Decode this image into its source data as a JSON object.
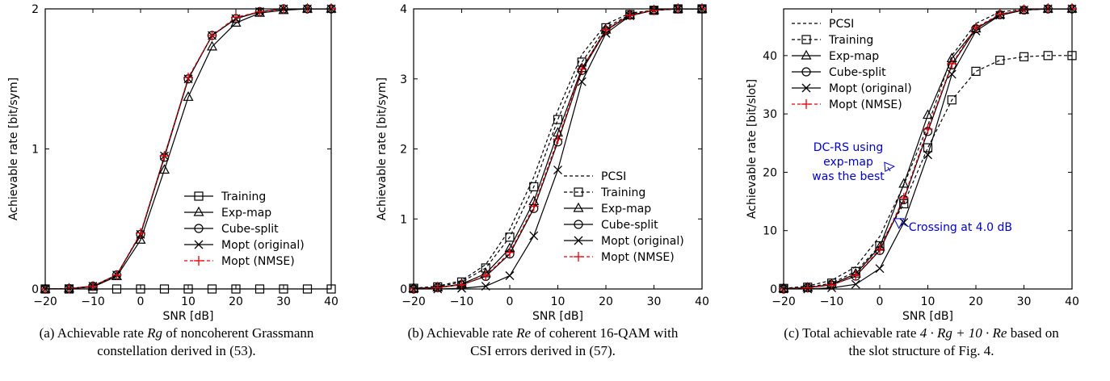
{
  "charts": [
    {
      "id": "a",
      "caption_before": "(a) Achievable rate ",
      "caption_math": "Rg",
      "caption_after": " of noncoherent Grassmann",
      "caption_line2": "constellation derived in (53).",
      "chart_data": {
        "type": "line",
        "xlabel": "SNR [dB]",
        "ylabel": "Achievable rate [bit/sym]",
        "xlim": [
          -20,
          40
        ],
        "ylim": [
          0,
          2
        ],
        "xticks": [
          -20,
          -10,
          0,
          10,
          20,
          30,
          40
        ],
        "yticks": [
          0,
          1,
          2
        ],
        "x": [
          -20,
          -15,
          -10,
          -5,
          0,
          5,
          10,
          15,
          20,
          25,
          30,
          35,
          40
        ],
        "legend_position": "bottom-right",
        "series": [
          {
            "name": "Training",
            "style": "solid",
            "marker": "square",
            "color": "#000000",
            "values": [
              0,
              0,
              0,
              0,
              0,
              0,
              0,
              0,
              0,
              0,
              0,
              0,
              0
            ]
          },
          {
            "name": "Exp-map",
            "style": "solid",
            "marker": "triangle",
            "color": "#000000",
            "values": [
              0.0,
              0.002,
              0.015,
              0.09,
              0.35,
              0.85,
              1.37,
              1.73,
              1.9,
              1.97,
              1.99,
              2.0,
              2.0
            ]
          },
          {
            "name": "Cube-split",
            "style": "solid",
            "marker": "circle",
            "color": "#000000",
            "values": [
              0.0,
              0.003,
              0.02,
              0.1,
              0.39,
              0.94,
              1.5,
              1.81,
              1.93,
              1.98,
              2.0,
              2.0,
              2.0
            ]
          },
          {
            "name": "Mopt (original)",
            "style": "solid",
            "marker": "x",
            "color": "#000000",
            "values": [
              0.0,
              0.003,
              0.02,
              0.1,
              0.39,
              0.95,
              1.5,
              1.81,
              1.93,
              1.98,
              2.0,
              2.0,
              2.0
            ]
          },
          {
            "name": "Mopt (NMSE)",
            "style": "dashed",
            "marker": "plus",
            "color": "#e8000b",
            "values": [
              0.0,
              0.003,
              0.02,
              0.1,
              0.4,
              0.95,
              1.51,
              1.81,
              1.94,
              1.98,
              2.0,
              2.0,
              2.0
            ]
          }
        ]
      }
    },
    {
      "id": "b",
      "caption_before": "(b) Achievable rate ",
      "caption_math": "Re",
      "caption_after": " of coherent 16-QAM with",
      "caption_line2": "CSI errors derived in (57).",
      "chart_data": {
        "type": "line",
        "xlabel": "SNR [dB]",
        "ylabel": "Achievable rate [bit/sym]",
        "xlim": [
          -20,
          40
        ],
        "ylim": [
          0,
          4
        ],
        "xticks": [
          -20,
          -10,
          0,
          10,
          20,
          30,
          40
        ],
        "yticks": [
          0,
          1,
          2,
          3,
          4
        ],
        "x": [
          -20,
          -15,
          -10,
          -5,
          0,
          5,
          10,
          15,
          20,
          25,
          30,
          35,
          40
        ],
        "legend_position": "bottom-right",
        "series": [
          {
            "name": "PCSI",
            "style": "dashed",
            "marker": "none",
            "color": "#000000",
            "values": [
              0.01,
              0.04,
              0.12,
              0.35,
              0.85,
              1.6,
              2.55,
              3.35,
              3.78,
              3.94,
              3.98,
              4.0,
              4.0
            ]
          },
          {
            "name": "Training",
            "style": "dashed",
            "marker": "square",
            "color": "#000000",
            "values": [
              0.01,
              0.03,
              0.1,
              0.3,
              0.74,
              1.46,
              2.42,
              3.24,
              3.73,
              3.92,
              3.98,
              4.0,
              4.0
            ]
          },
          {
            "name": "Exp-map",
            "style": "solid",
            "marker": "triangle",
            "color": "#000000",
            "values": [
              0.01,
              0.02,
              0.07,
              0.22,
              0.58,
              1.25,
              2.23,
              3.15,
              3.7,
              3.91,
              3.98,
              4.0,
              4.0
            ]
          },
          {
            "name": "Cube-split",
            "style": "solid",
            "marker": "circle",
            "color": "#000000",
            "values": [
              0.0,
              0.02,
              0.06,
              0.18,
              0.5,
              1.15,
              2.1,
              3.12,
              3.69,
              3.91,
              3.98,
              4.0,
              4.0
            ]
          },
          {
            "name": "Mopt (original)",
            "style": "solid",
            "marker": "x",
            "color": "#000000",
            "values": [
              0.0,
              0.0,
              0.01,
              0.04,
              0.19,
              0.76,
              1.7,
              2.96,
              3.65,
              3.9,
              3.98,
              4.0,
              4.0
            ]
          },
          {
            "name": "Mopt (NMSE)",
            "style": "dashed",
            "marker": "plus",
            "color": "#e8000b",
            "values": [
              0.0,
              0.02,
              0.06,
              0.19,
              0.52,
              1.18,
              2.14,
              3.14,
              3.7,
              3.91,
              3.98,
              4.0,
              4.0
            ]
          }
        ]
      }
    },
    {
      "id": "c",
      "caption_before": "(c) Total achievable rate ",
      "caption_math": "4 · Rg + 10 · Re",
      "caption_after": " based on",
      "caption_line2": "the slot structure of Fig. 4.",
      "chart_data": {
        "type": "line",
        "xlabel": "SNR [dB]",
        "ylabel": "Achievable rate [bit/slot]",
        "xlim": [
          -20,
          40
        ],
        "ylim": [
          0,
          48
        ],
        "xticks": [
          -20,
          -10,
          0,
          10,
          20,
          30,
          40
        ],
        "yticks": [
          0,
          10,
          20,
          30,
          40
        ],
        "x": [
          -20,
          -15,
          -10,
          -5,
          0,
          5,
          10,
          15,
          20,
          25,
          30,
          35,
          40
        ],
        "legend_position": "top-left",
        "series": [
          {
            "name": "PCSI",
            "style": "dashed",
            "marker": "none",
            "color": "#000000",
            "values": [
              0.1,
              0.5,
              1.5,
              3.8,
              9.0,
              17.8,
              28.0,
              40.0,
              45.5,
              47.5,
              47.9,
              48.0,
              48.0
            ]
          },
          {
            "name": "Training",
            "style": "dashed",
            "marker": "square",
            "color": "#000000",
            "values": [
              0.1,
              0.3,
              1.0,
              3.0,
              7.4,
              14.6,
              24.2,
              32.4,
              37.3,
              39.2,
              39.8,
              40.0,
              40.0
            ]
          },
          {
            "name": "Exp-map",
            "style": "solid",
            "marker": "triangle",
            "color": "#000000",
            "values": [
              0.1,
              0.2,
              0.8,
              2.6,
              7.2,
              18.0,
              29.8,
              39.5,
              44.6,
              47.0,
              47.8,
              48.0,
              48.0
            ]
          },
          {
            "name": "Cube-split",
            "style": "solid",
            "marker": "circle",
            "color": "#000000",
            "values": [
              0.0,
              0.2,
              0.7,
              2.2,
              6.6,
              15.3,
              27.0,
              38.4,
              44.6,
              47.0,
              47.8,
              48.0,
              48.0
            ]
          },
          {
            "name": "Mopt (original)",
            "style": "solid",
            "marker": "x",
            "color": "#000000",
            "values": [
              0.0,
              0.0,
              0.2,
              0.8,
              3.5,
              11.4,
              23.0,
              36.8,
              44.2,
              46.9,
              47.8,
              48.0,
              48.0
            ]
          },
          {
            "name": "Mopt (NMSE)",
            "style": "dashed",
            "marker": "plus",
            "color": "#e8000b",
            "values": [
              0.0,
              0.2,
              0.7,
              2.3,
              6.8,
              15.6,
              27.4,
              38.6,
              44.8,
              47.1,
              47.9,
              48.0,
              48.0
            ]
          }
        ],
        "annotations": [
          {
            "id": "best",
            "lines": [
              "DC-RS using",
              "exp-map",
              "was the best"
            ],
            "color": "#0000cc",
            "arrow_to": [
              3.0,
              21.0
            ]
          },
          {
            "id": "crossing",
            "text": "Crossing at 4.0 dB",
            "color": "#0000cc",
            "arrow_to": [
              4.0,
              11.5
            ]
          }
        ]
      }
    }
  ]
}
